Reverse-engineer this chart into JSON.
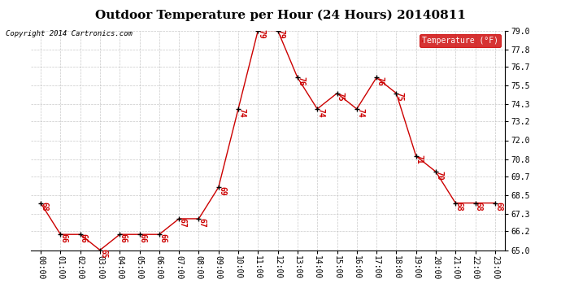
{
  "title": "Outdoor Temperature per Hour (24 Hours) 20140811",
  "copyright_text": "Copyright 2014 Cartronics.com",
  "legend_label": "Temperature (°F)",
  "hours": [
    "00:00",
    "01:00",
    "02:00",
    "03:00",
    "04:00",
    "05:00",
    "06:00",
    "07:00",
    "08:00",
    "09:00",
    "10:00",
    "11:00",
    "12:00",
    "13:00",
    "14:00",
    "15:00",
    "16:00",
    "17:00",
    "18:00",
    "19:00",
    "20:00",
    "21:00",
    "22:00",
    "23:00"
  ],
  "temps": [
    68,
    66,
    66,
    65,
    66,
    66,
    66,
    67,
    67,
    69,
    74,
    79,
    79,
    76,
    74,
    75,
    74,
    76,
    75,
    71,
    70,
    68,
    68,
    68
  ],
  "line_color": "#cc0000",
  "marker_color": "#000000",
  "background_color": "#ffffff",
  "grid_color": "#bbbbbb",
  "ylim": [
    65.0,
    79.0
  ],
  "yticks": [
    65.0,
    66.2,
    67.3,
    68.5,
    69.7,
    70.8,
    72.0,
    73.2,
    74.3,
    75.5,
    76.7,
    77.8,
    79.0
  ],
  "title_fontsize": 11,
  "label_fontsize": 7,
  "annot_fontsize": 7,
  "copyright_fontsize": 6.5
}
